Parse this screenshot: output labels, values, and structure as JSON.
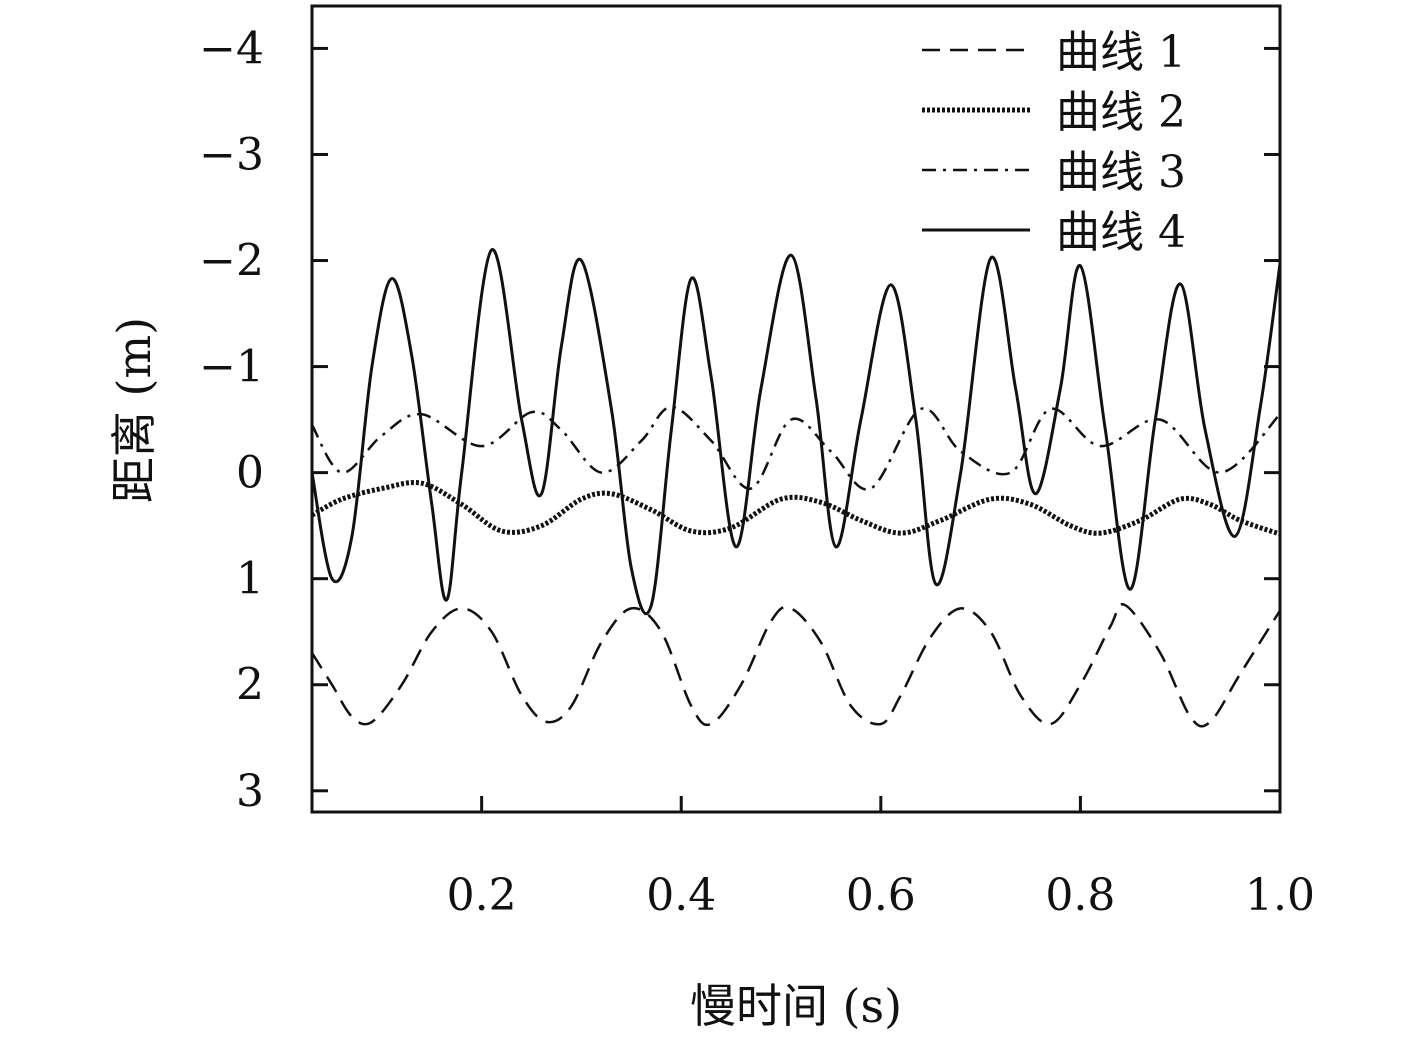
{
  "chart_data": {
    "type": "line",
    "xlabel": "慢时间 (s)",
    "ylabel": "距离 (m)",
    "xlim": [
      0.03,
      1.0
    ],
    "ylim": [
      -4.4,
      3.2
    ],
    "y_inverted": true,
    "x_ticks": [
      0.2,
      0.4,
      0.6,
      0.8,
      1.0
    ],
    "x_tick_labels": [
      "0.2",
      "0.4",
      "0.6",
      "0.8",
      "1.0"
    ],
    "y_ticks": [
      -4,
      -3,
      -2,
      -1,
      0,
      1,
      2,
      3
    ],
    "y_tick_labels": [
      "−4",
      "−3",
      "−2",
      "−1",
      "0",
      "1",
      "2",
      "3"
    ],
    "grid": false,
    "legend_position": "top-right",
    "series": [
      {
        "name": "曲线 1",
        "style": "dashed",
        "x": [
          0.03,
          0.05,
          0.07,
          0.09,
          0.12,
          0.15,
          0.18,
          0.21,
          0.24,
          0.265,
          0.29,
          0.32,
          0.35,
          0.38,
          0.41,
          0.43,
          0.46,
          0.49,
          0.51,
          0.54,
          0.57,
          0.6,
          0.62,
          0.65,
          0.68,
          0.71,
          0.74,
          0.77,
          0.8,
          0.83,
          0.845,
          0.88,
          0.91,
          0.93,
          0.96,
          1.0
        ],
        "y": [
          1.7,
          2.0,
          2.3,
          2.35,
          2.0,
          1.5,
          1.28,
          1.5,
          2.1,
          2.35,
          2.2,
          1.6,
          1.28,
          1.5,
          2.2,
          2.37,
          2.0,
          1.4,
          1.28,
          1.6,
          2.2,
          2.37,
          2.1,
          1.55,
          1.28,
          1.5,
          2.1,
          2.37,
          2.0,
          1.45,
          1.25,
          1.7,
          2.3,
          2.35,
          1.9,
          1.3
        ]
      },
      {
        "name": "曲线 2",
        "style": "dotted",
        "x": [
          0.03,
          0.06,
          0.1,
          0.14,
          0.18,
          0.22,
          0.26,
          0.3,
          0.33,
          0.37,
          0.41,
          0.45,
          0.5,
          0.54,
          0.58,
          0.62,
          0.66,
          0.71,
          0.75,
          0.79,
          0.82,
          0.86,
          0.9,
          0.93,
          0.96,
          1.0
        ],
        "y": [
          0.4,
          0.25,
          0.15,
          0.1,
          0.3,
          0.55,
          0.5,
          0.25,
          0.2,
          0.35,
          0.55,
          0.52,
          0.25,
          0.28,
          0.45,
          0.57,
          0.45,
          0.25,
          0.3,
          0.5,
          0.57,
          0.45,
          0.25,
          0.3,
          0.45,
          0.58
        ]
      },
      {
        "name": "曲线 3",
        "style": "dashdot",
        "x": [
          0.03,
          0.06,
          0.1,
          0.14,
          0.2,
          0.25,
          0.28,
          0.32,
          0.36,
          0.39,
          0.43,
          0.47,
          0.51,
          0.55,
          0.59,
          0.64,
          0.68,
          0.73,
          0.77,
          0.82,
          0.88,
          0.94,
          1.0
        ],
        "y": [
          -0.45,
          0.0,
          -0.35,
          -0.55,
          -0.25,
          -0.57,
          -0.4,
          0.0,
          -0.3,
          -0.62,
          -0.3,
          0.15,
          -0.5,
          -0.2,
          0.15,
          -0.6,
          -0.2,
          0.0,
          -0.6,
          -0.25,
          -0.5,
          0.0,
          -0.55
        ]
      },
      {
        "name": "曲线 4",
        "style": "solid",
        "x": [
          0.03,
          0.05,
          0.07,
          0.09,
          0.11,
          0.13,
          0.15,
          0.165,
          0.18,
          0.21,
          0.24,
          0.26,
          0.28,
          0.3,
          0.33,
          0.35,
          0.37,
          0.39,
          0.41,
          0.43,
          0.455,
          0.48,
          0.51,
          0.535,
          0.555,
          0.58,
          0.61,
          0.635,
          0.655,
          0.68,
          0.71,
          0.735,
          0.755,
          0.78,
          0.8,
          0.825,
          0.85,
          0.875,
          0.9,
          0.925,
          0.955,
          0.98,
          1.0
        ],
        "y": [
          0.0,
          1.0,
          0.6,
          -1.0,
          -1.83,
          -1.1,
          0.3,
          1.2,
          0.0,
          -2.1,
          -0.5,
          0.2,
          -1.2,
          -2.0,
          -0.6,
          0.9,
          1.25,
          -0.4,
          -1.83,
          -0.9,
          0.7,
          -0.8,
          -2.05,
          -0.7,
          0.7,
          -0.5,
          -1.77,
          -0.5,
          1.05,
          0.0,
          -2.02,
          -0.8,
          0.2,
          -0.8,
          -1.95,
          -0.4,
          1.1,
          -0.5,
          -1.78,
          -0.4,
          0.6,
          -0.6,
          -1.97
        ]
      }
    ]
  }
}
